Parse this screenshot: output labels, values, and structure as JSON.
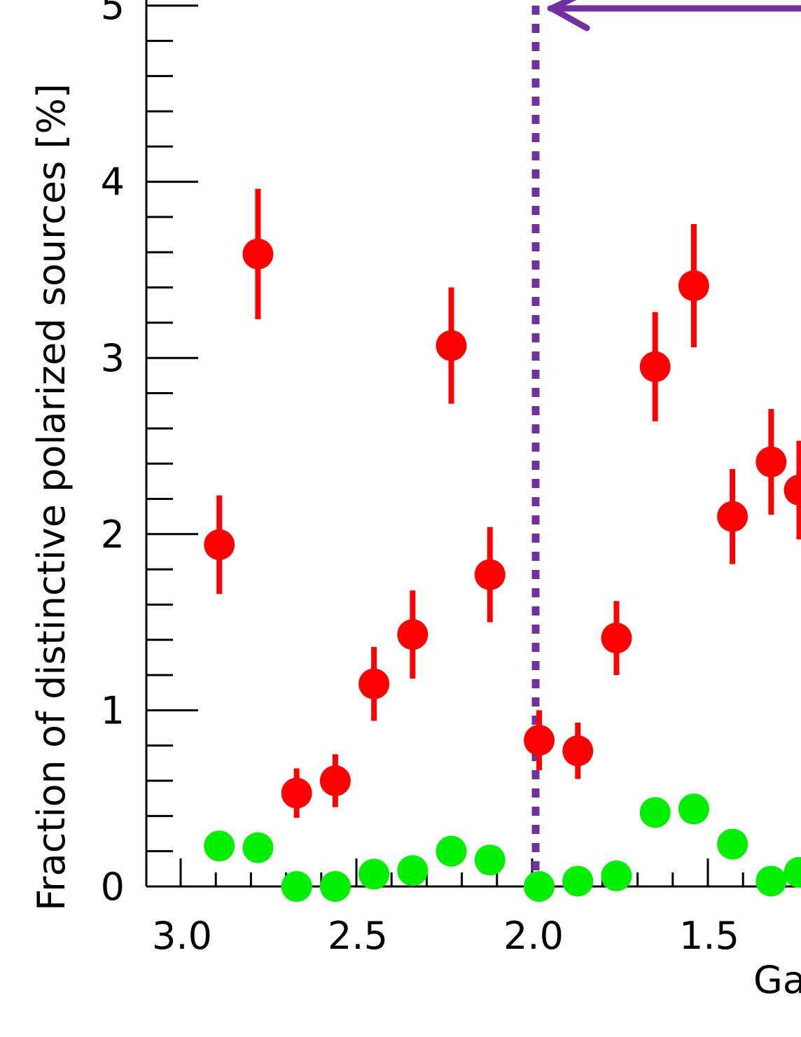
{
  "chart_data": {
    "type": "scatter",
    "xlabel": "Ga",
    "ylabel": "Fraction of distinctive polarized sources [%]",
    "x_reversed": true,
    "xlim": [
      3.1,
      1.25
    ],
    "ylim": [
      0,
      5
    ],
    "x_ticks": [
      3.0,
      2.5,
      2.0,
      1.5
    ],
    "x_tick_labels": [
      "3.0",
      "2.5",
      "2.0",
      "1.5"
    ],
    "y_ticks": [
      0,
      1,
      2,
      3,
      4,
      5
    ],
    "y_tick_labels": [
      "0",
      "1",
      "2",
      "3",
      "4",
      "5"
    ],
    "grid": false,
    "vertical_reference_line": {
      "x": 1.99,
      "style": "dotted",
      "color": "#7030a0"
    },
    "arrow": {
      "from_x": 1.25,
      "to_x": 1.96,
      "y": 5.0,
      "color": "#7030a0"
    },
    "series": [
      {
        "color": "#ff0000",
        "error_bars": true,
        "points": [
          {
            "x": 2.89,
            "y": 1.94,
            "err": 0.28
          },
          {
            "x": 2.78,
            "y": 3.59,
            "err": 0.37
          },
          {
            "x": 2.67,
            "y": 0.53,
            "err": 0.14
          },
          {
            "x": 2.56,
            "y": 0.6,
            "err": 0.15
          },
          {
            "x": 2.45,
            "y": 1.15,
            "err": 0.21
          },
          {
            "x": 2.34,
            "y": 1.43,
            "err": 0.25
          },
          {
            "x": 2.23,
            "y": 3.07,
            "err": 0.33
          },
          {
            "x": 2.12,
            "y": 1.77,
            "err": 0.27
          },
          {
            "x": 1.98,
            "y": 0.83,
            "err": 0.17
          },
          {
            "x": 1.87,
            "y": 0.77,
            "err": 0.16
          },
          {
            "x": 1.76,
            "y": 1.41,
            "err": 0.21
          },
          {
            "x": 1.65,
            "y": 2.95,
            "err": 0.31
          },
          {
            "x": 1.54,
            "y": 3.41,
            "err": 0.35
          },
          {
            "x": 1.43,
            "y": 2.1,
            "err": 0.27
          },
          {
            "x": 1.32,
            "y": 2.41,
            "err": 0.3
          },
          {
            "x": 1.24,
            "y": 2.25,
            "err": 0.28
          }
        ]
      },
      {
        "color": "#00ee00",
        "error_bars": false,
        "points": [
          {
            "x": 2.89,
            "y": 0.23
          },
          {
            "x": 2.78,
            "y": 0.22
          },
          {
            "x": 2.67,
            "y": 0.0
          },
          {
            "x": 2.56,
            "y": 0.0
          },
          {
            "x": 2.45,
            "y": 0.07
          },
          {
            "x": 2.34,
            "y": 0.09
          },
          {
            "x": 2.23,
            "y": 0.2
          },
          {
            "x": 2.12,
            "y": 0.15
          },
          {
            "x": 1.98,
            "y": 0.0
          },
          {
            "x": 1.87,
            "y": 0.03
          },
          {
            "x": 1.76,
            "y": 0.06
          },
          {
            "x": 1.65,
            "y": 0.42
          },
          {
            "x": 1.54,
            "y": 0.44
          },
          {
            "x": 1.43,
            "y": 0.24
          },
          {
            "x": 1.32,
            "y": 0.03
          },
          {
            "x": 1.24,
            "y": 0.08
          }
        ]
      }
    ]
  }
}
